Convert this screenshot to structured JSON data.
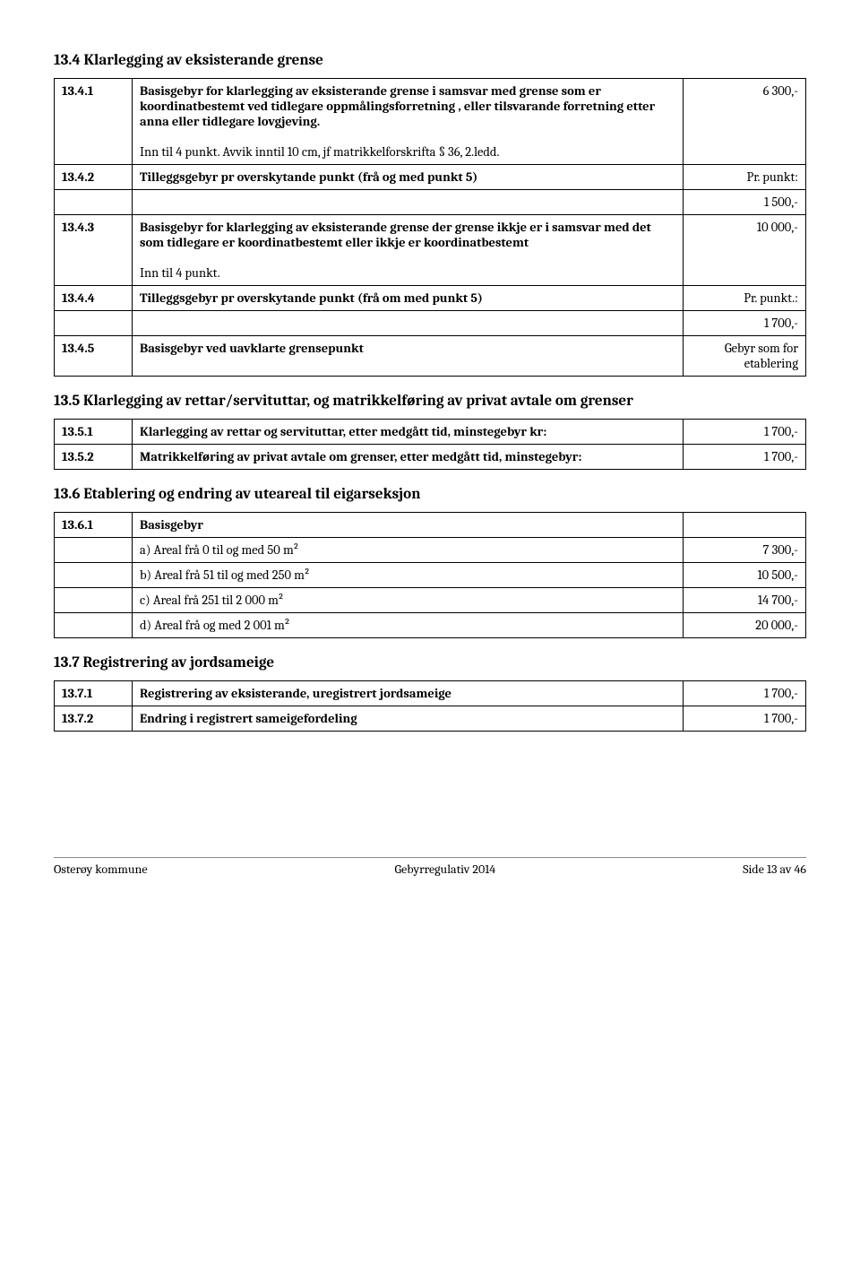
{
  "s134": {
    "title": "13.4 Klarlegging av eksisterande grense",
    "rows": [
      {
        "num": "13.4.1",
        "desc": "Basisgebyr for klarlegging av eksisterande grense i samsvar med grense som er koordinatbestemt ved tidlegare oppmålingsforretning , eller tilsvarande forretning etter anna eller tidlegare lovgjeving.",
        "note": "Inn til 4 punkt. Avvik inntil 10 cm, jf matrikkelforskrifta § 36, 2.ledd.",
        "val": "6 300,-",
        "desc_bold": true
      },
      {
        "num": "13.4.2",
        "desc": "Tilleggsgebyr pr overskytande punkt (frå og med punkt 5)",
        "val": "Pr. punkt:",
        "desc_bold": true
      },
      {
        "num": "",
        "desc": "",
        "val": "1 500,-",
        "desc_bold": false
      },
      {
        "num": "13.4.3",
        "desc": "Basisgebyr for klarlegging av eksisterande grense der grense ikkje er i samsvar med det som tidlegare er koordinatbestemt eller ikkje er koordinatbestemt",
        "note": "Inn til 4 punkt.",
        "val": "10 000,-",
        "desc_bold": true
      },
      {
        "num": "13.4.4",
        "desc": "Tilleggsgebyr pr overskytande punkt (frå om med punkt 5)",
        "val": "Pr. punkt.:",
        "desc_bold": true
      },
      {
        "num": "",
        "desc": "",
        "val": "1 700,-",
        "desc_bold": false
      },
      {
        "num": "13.4.5",
        "desc": "Basisgebyr ved uavklarte grensepunkt",
        "val": "Gebyr som for etablering",
        "desc_bold": true
      }
    ]
  },
  "s135": {
    "title": "13.5 Klarlegging av rettar/servituttar, og matrikkelføring av privat avtale om grenser",
    "rows": [
      {
        "num": "13.5.1",
        "desc": "Klarlegging av rettar og servituttar, etter medgått tid, minstegebyr kr:",
        "val": "1 700,-"
      },
      {
        "num": "13.5.2",
        "desc": "Matrikkelføring av privat avtale om grenser, etter medgått tid, minstegebyr:",
        "val": "1 700,-"
      }
    ]
  },
  "s136": {
    "title": "13.6 Etablering og endring av uteareal til eigarseksjon",
    "header": {
      "num": "13.6.1",
      "desc": "Basisgebyr"
    },
    "rows": [
      {
        "desc": "a) Areal frå 0 til og med 50 m²",
        "val": "7 300,-"
      },
      {
        "desc": "b) Areal frå 51 til og med 250 m²",
        "val": "10 500,-"
      },
      {
        "desc": "c) Areal frå 251 til 2 000 m²",
        "val": "14 700,-"
      },
      {
        "desc": "d) Areal frå og med 2 001  m²",
        "val": "20 000,-"
      }
    ]
  },
  "s137": {
    "title": "13.7 Registrering av jordsameige",
    "rows": [
      {
        "num": "13.7.1",
        "desc": "Registrering av eksisterande, uregistrert jordsameige",
        "val": "1 700,-"
      },
      {
        "num": "13.7.2",
        "desc": "Endring i registrert sameigefordeling",
        "val": "1 700,-"
      }
    ]
  },
  "footer": {
    "left": "Osterøy kommune",
    "center": "Gebyrregulativ 2014",
    "right": "Side 13 av 46"
  }
}
